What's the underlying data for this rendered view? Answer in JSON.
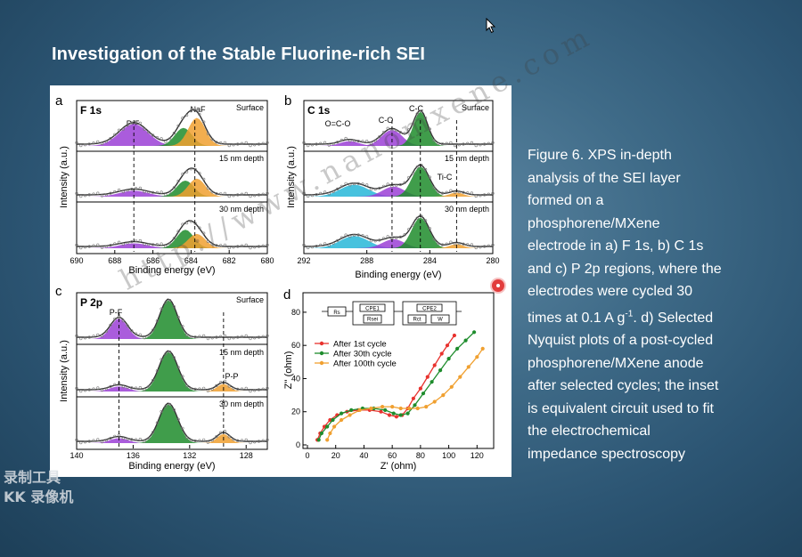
{
  "slide": {
    "title": "Investigation of the Stable Fluorine-rich SEI"
  },
  "caption": {
    "line_a": "Figure 6. XPS in-depth\nanalysis of the SEI layer\nformed on a\nphosphorene/MXene\nelectrode in a) F 1s, b) C 1s\nand c) P 2p regions, where the\nelectrodes were cycled 30\ntimes at 0.1 A g",
    "sup": "-1",
    "line_b": ". d) Selected\nNyquist plots of a post-cycled\nphosphorene/MXene anode\nafter selected cycles; the inset\nis equivalent circuit used to fit\nthe electrochemical\nimpedance spectroscopy"
  },
  "recorder": {
    "line1": "录制工具",
    "line2": "KK 录像机"
  },
  "watermark": "http://www.nanomxene.com",
  "colors": {
    "purple": "#9b3fd6",
    "green": "#1e8c2c",
    "orange": "#f0a030",
    "cyan": "#27b7d8",
    "red": "#e8322e",
    "curve": "#555555"
  },
  "panels": {
    "a": {
      "letter": "a",
      "region": "F 1s",
      "ylabel": "Intensity (a.u.)",
      "xlabel": "Binding energy (eV)",
      "ticks": [
        "690",
        "688",
        "686",
        "684",
        "682",
        "680"
      ],
      "depths": [
        "Surface",
        "15 nm depth",
        "30 nm depth"
      ],
      "peaks": [
        "P-F",
        "NaF"
      ],
      "rows": [
        [
          [
            687.0,
            0.55,
            1.5,
            "purple"
          ],
          [
            684.4,
            0.45,
            0.9,
            "green"
          ],
          [
            683.7,
            0.7,
            0.9,
            "orange"
          ]
        ],
        [
          [
            687.0,
            0.15,
            1.5,
            "purple"
          ],
          [
            684.3,
            0.4,
            0.9,
            "green"
          ],
          [
            683.7,
            0.45,
            0.9,
            "orange"
          ]
        ],
        [
          [
            687.0,
            0.12,
            1.5,
            "purple"
          ],
          [
            684.3,
            0.45,
            0.9,
            "green"
          ],
          [
            683.7,
            0.35,
            0.9,
            "orange"
          ]
        ]
      ]
    },
    "b": {
      "letter": "b",
      "region": "C 1s",
      "ylabel": "Intensity (a.u.)",
      "xlabel": "Binding energy (eV)",
      "ticks": [
        "292",
        "288",
        "284",
        "280"
      ],
      "depths": [
        "Surface",
        "15 nm depth",
        "30 nm depth"
      ],
      "peaks": [
        "O=C-O",
        "C-O",
        "C-C",
        "Ti-C"
      ],
      "rows": [
        [
          [
            289.1,
            0.12,
            1.2,
            "purple"
          ],
          [
            286.4,
            0.4,
            1.3,
            "purple"
          ],
          [
            284.6,
            0.85,
            0.9,
            "green"
          ]
        ],
        [
          [
            288.8,
            0.3,
            1.8,
            "cyan"
          ],
          [
            286.3,
            0.25,
            1.4,
            "purple"
          ],
          [
            284.6,
            0.75,
            1.1,
            "green"
          ],
          [
            282.3,
            0.1,
            0.9,
            "orange"
          ]
        ],
        [
          [
            288.8,
            0.3,
            1.8,
            "cyan"
          ],
          [
            286.3,
            0.22,
            1.4,
            "purple"
          ],
          [
            284.6,
            0.75,
            1.1,
            "green"
          ],
          [
            282.3,
            0.1,
            0.9,
            "orange"
          ]
        ]
      ]
    },
    "c": {
      "letter": "c",
      "region": "P 2p",
      "ylabel": "Intensity (a.u.)",
      "xlabel": "Binding energy (eV)",
      "ticks": [
        "140",
        "136",
        "132",
        "128"
      ],
      "depths": [
        "Surface",
        "15 nm depth",
        "30 nm depth"
      ],
      "peaks": [
        "P-F",
        "P-P"
      ],
      "rows": [
        [
          [
            137.0,
            0.5,
            1.2,
            "purple"
          ],
          [
            133.5,
            0.95,
            1.2,
            "green"
          ]
        ],
        [
          [
            137.0,
            0.12,
            1.3,
            "purple"
          ],
          [
            133.5,
            0.95,
            1.3,
            "green"
          ],
          [
            129.6,
            0.18,
            0.9,
            "orange"
          ]
        ],
        [
          [
            137.0,
            0.12,
            1.3,
            "purple"
          ],
          [
            133.5,
            0.95,
            1.3,
            "green"
          ],
          [
            129.6,
            0.22,
            0.9,
            "orange"
          ]
        ]
      ]
    },
    "d": {
      "letter": "d",
      "xlabel": "Z' (ohm)",
      "ylabel": "Z'' (ohm)",
      "xticks": [
        "0",
        "20",
        "40",
        "60",
        "80",
        "100",
        "120"
      ],
      "yticks": [
        "0",
        "20",
        "40",
        "60",
        "80"
      ],
      "circuit": [
        "Rs",
        "CPE1",
        "Rsei",
        "CPE2",
        "Rct",
        "W"
      ]
    }
  },
  "chart_data": {
    "type": "line",
    "title": "",
    "xlabel": "Z' (ohm)",
    "ylabel": "Z'' (ohm)",
    "xlim": [
      0,
      128
    ],
    "ylim": [
      0,
      88
    ],
    "series": [
      {
        "name": "After 1st cycle",
        "color": "#e8322e",
        "points": [
          [
            7,
            3
          ],
          [
            9,
            7
          ],
          [
            12,
            11
          ],
          [
            16,
            15
          ],
          [
            21,
            18
          ],
          [
            28,
            20
          ],
          [
            36,
            21
          ],
          [
            44,
            21
          ],
          [
            52,
            20
          ],
          [
            58,
            18
          ],
          [
            63,
            17
          ],
          [
            67,
            18
          ],
          [
            71,
            22
          ],
          [
            75,
            28
          ],
          [
            80,
            34
          ],
          [
            85,
            41
          ],
          [
            90,
            48
          ],
          [
            95,
            55
          ],
          [
            99,
            60
          ],
          [
            104,
            66
          ]
        ]
      },
      {
        "name": "After 30th cycle",
        "color": "#1e8c2c",
        "points": [
          [
            8,
            3
          ],
          [
            10,
            7
          ],
          [
            14,
            11
          ],
          [
            18,
            15
          ],
          [
            24,
            19
          ],
          [
            31,
            21
          ],
          [
            39,
            22
          ],
          [
            47,
            22
          ],
          [
            55,
            21
          ],
          [
            61,
            19
          ],
          [
            66,
            18
          ],
          [
            71,
            19
          ],
          [
            76,
            24
          ],
          [
            82,
            31
          ],
          [
            88,
            38
          ],
          [
            94,
            45
          ],
          [
            100,
            52
          ],
          [
            106,
            58
          ],
          [
            112,
            63
          ],
          [
            118,
            68
          ]
        ]
      },
      {
        "name": "After 100th cycle",
        "color": "#f0a030",
        "points": [
          [
            14,
            3
          ],
          [
            16,
            7
          ],
          [
            19,
            11
          ],
          [
            24,
            15
          ],
          [
            30,
            18
          ],
          [
            37,
            21
          ],
          [
            45,
            22
          ],
          [
            53,
            23
          ],
          [
            60,
            23
          ],
          [
            66,
            22
          ],
          [
            72,
            22
          ],
          [
            78,
            22
          ],
          [
            84,
            23
          ],
          [
            90,
            26
          ],
          [
            96,
            30
          ],
          [
            102,
            35
          ],
          [
            108,
            41
          ],
          [
            114,
            47
          ],
          [
            120,
            53
          ],
          [
            124,
            58
          ]
        ]
      }
    ]
  }
}
